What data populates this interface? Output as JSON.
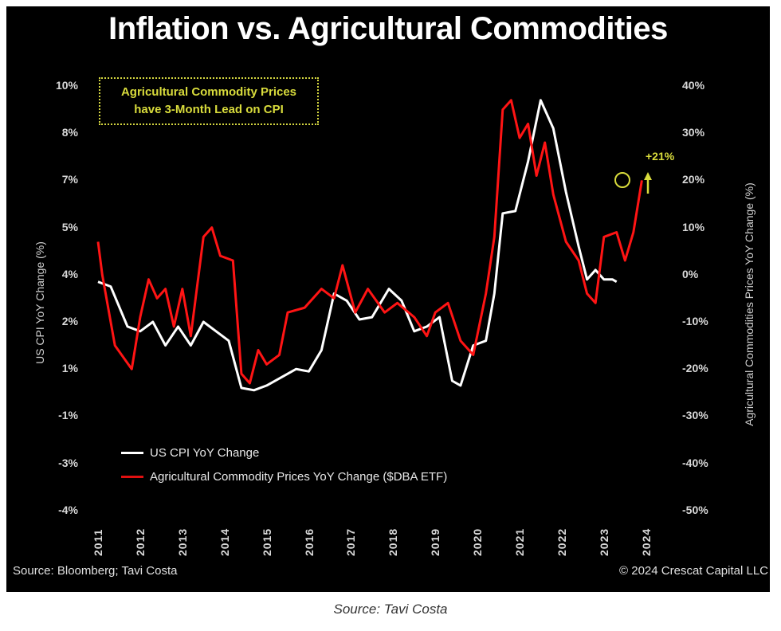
{
  "chart_data": {
    "type": "line",
    "title": "Inflation vs. Agricultural Commodities",
    "xlabel": "",
    "ylabel_left": "US CPI YoY Change (%)",
    "ylabel_right": "Agricultural Commodities Prices YoY Change (%)",
    "x_ticks": [
      "2011",
      "2012",
      "2013",
      "2014",
      "2015",
      "2016",
      "2017",
      "2018",
      "2019",
      "2020",
      "2021",
      "2022",
      "2023",
      "2024"
    ],
    "x_range": [
      2011,
      2024
    ],
    "y_left_ticks": [
      "10%",
      "8%",
      "7%",
      "5%",
      "4%",
      "2%",
      "1%",
      "-1%",
      "-3%",
      "-4%"
    ],
    "y_left_tick_values": [
      10,
      8,
      7,
      5,
      4,
      2,
      1,
      -1,
      -3,
      -4
    ],
    "y_right_ticks": [
      "40%",
      "30%",
      "20%",
      "10%",
      "0%",
      "-10%",
      "-20%",
      "-30%",
      "-40%",
      "-50%"
    ],
    "y_right_range": [
      -50,
      40
    ],
    "grid": false,
    "legend_position": "bottom-left",
    "series": [
      {
        "name": "US CPI YoY Change",
        "axis": "left",
        "color": "#ffffff",
        "x": [
          2011.0,
          2011.3,
          2011.7,
          2012.0,
          2012.3,
          2012.6,
          2012.9,
          2013.2,
          2013.5,
          2013.8,
          2014.1,
          2014.4,
          2014.7,
          2015.0,
          2015.4,
          2015.7,
          2016.0,
          2016.3,
          2016.6,
          2016.9,
          2017.2,
          2017.5,
          2017.9,
          2018.2,
          2018.5,
          2018.8,
          2019.1,
          2019.4,
          2019.6,
          2019.9,
          2020.2,
          2020.4,
          2020.6,
          2020.9,
          2021.2,
          2021.5,
          2021.8,
          2022.1,
          2022.4,
          2022.6,
          2022.8,
          2023.0,
          2023.2,
          2023.3
        ],
        "values": [
          3.7,
          3.5,
          1.9,
          1.8,
          2.0,
          1.5,
          1.9,
          1.5,
          2.0,
          1.8,
          1.6,
          0.2,
          0.1,
          0.3,
          0.7,
          1.0,
          0.9,
          1.4,
          3.2,
          2.9,
          2.1,
          2.2,
          3.4,
          2.9,
          1.8,
          1.9,
          2.2,
          0.5,
          0.3,
          1.5,
          1.6,
          3.2,
          5.6,
          5.7,
          7.4,
          9.4,
          8.2,
          6.5,
          4.6,
          3.8,
          4.1,
          3.8,
          3.8,
          3.7
        ]
      },
      {
        "name": "Agricultural Commodity Prices YoY Change ($DBA ETF)",
        "axis": "right",
        "color": "#ff1414",
        "x": [
          2011.0,
          2011.1,
          2011.4,
          2011.8,
          2012.0,
          2012.2,
          2012.4,
          2012.6,
          2012.8,
          2013.0,
          2013.2,
          2013.5,
          2013.7,
          2013.9,
          2014.2,
          2014.4,
          2014.6,
          2014.8,
          2015.0,
          2015.3,
          2015.5,
          2015.9,
          2016.3,
          2016.6,
          2016.8,
          2017.1,
          2017.4,
          2017.8,
          2018.1,
          2018.5,
          2018.8,
          2019.0,
          2019.3,
          2019.6,
          2019.9,
          2020.2,
          2020.4,
          2020.6,
          2020.8,
          2021.0,
          2021.2,
          2021.4,
          2021.6,
          2021.8,
          2022.1,
          2022.4,
          2022.6,
          2022.8,
          2023.0,
          2023.3,
          2023.5,
          2023.7,
          2023.9
        ],
        "values": [
          7,
          0,
          -15,
          -20,
          -9,
          -1,
          -5,
          -3,
          -11,
          -3,
          -13,
          8,
          10,
          4,
          3,
          -21,
          -23,
          -16,
          -19,
          -17,
          -8,
          -7,
          -3,
          -5,
          2,
          -8,
          -3,
          -8,
          -6,
          -9,
          -13,
          -8,
          -6,
          -14,
          -17,
          -4,
          8,
          35,
          37,
          29,
          32,
          21,
          28,
          17,
          7,
          3,
          -4,
          -6,
          8,
          9,
          3,
          9,
          20
        ]
      }
    ],
    "annotations": {
      "box_line1": "Agricultural Commodity Prices",
      "box_line2": "have 3-Month Lead on CPI",
      "callout": "+21%"
    }
  },
  "legend": {
    "cpi": "US CPI YoY Change",
    "ag": "Agricultural Commodity Prices YoY Change ($DBA ETF)"
  },
  "footer": {
    "source": "Source: Bloomberg; Tavi Costa",
    "copyright": "© 2024 Crescat Capital LLC"
  },
  "caption": "Source: Tavi Costa"
}
